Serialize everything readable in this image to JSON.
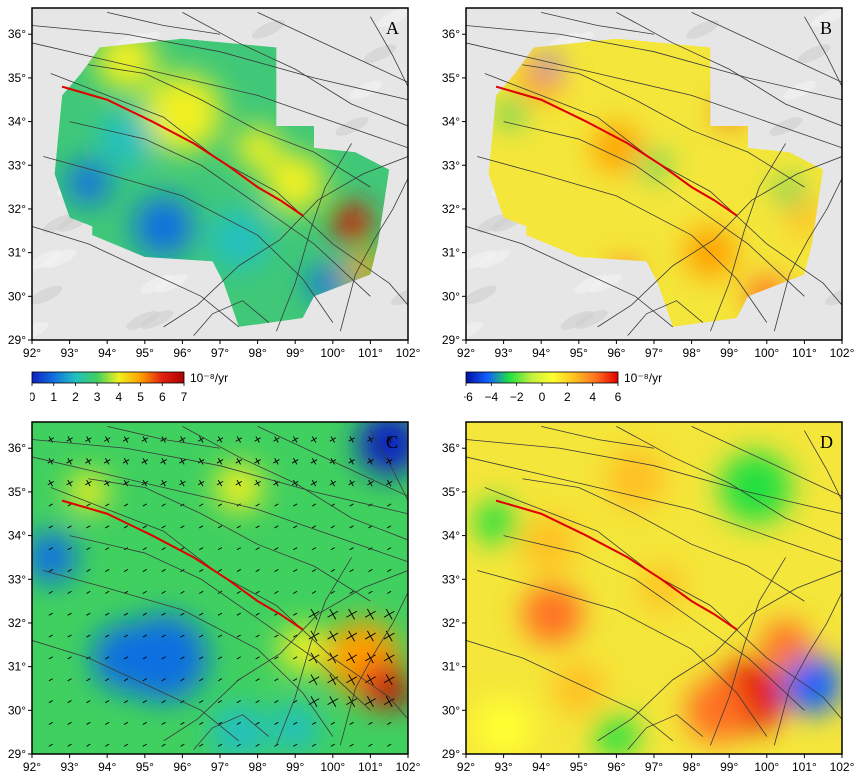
{
  "colors": {
    "fault_line": "#3a3a3a",
    "main_fault": "#e00000",
    "scale_strain": [
      "#1020c0",
      "#1070e0",
      "#20c0c0",
      "#40d060",
      "#f0f020",
      "#ffa000",
      "#e02010",
      "#b00000"
    ],
    "scale_rotation": [
      "#0010a0",
      "#1060ff",
      "#20e040",
      "#c0f040",
      "#ffff30",
      "#ffc020",
      "#ff7020",
      "#e00000"
    ]
  },
  "panels": [
    {
      "id": "A",
      "label": "A",
      "x_ticks": [
        "92°",
        "93°",
        "94°",
        "95°",
        "96°",
        "97°",
        "98°",
        "99°",
        "100°",
        "101°",
        "102°"
      ],
      "y_ticks": [
        "29°",
        "30°",
        "31°",
        "32°",
        "33°",
        "34°",
        "35°",
        "36°"
      ],
      "basemap": "shaded-relief"
    },
    {
      "id": "B",
      "label": "B",
      "x_ticks": [
        "92°",
        "93°",
        "94°",
        "95°",
        "96°",
        "97°",
        "98°",
        "99°",
        "100°",
        "101°",
        "102°"
      ],
      "y_ticks": [
        "29°",
        "30°",
        "31°",
        "32°",
        "33°",
        "34°",
        "35°",
        "36°"
      ],
      "basemap": "shaded-relief"
    },
    {
      "id": "C",
      "label": "C",
      "x_ticks": [
        "92°",
        "93°",
        "94°",
        "95°",
        "96°",
        "97°",
        "98°",
        "99°",
        "100°",
        "101°",
        "102°"
      ],
      "y_ticks": [
        "29°",
        "30°",
        "31°",
        "32°",
        "33°",
        "34°",
        "35°",
        "36°"
      ],
      "basemap": "none"
    },
    {
      "id": "D",
      "label": "D",
      "x_ticks": [
        "92°",
        "93°",
        "94°",
        "95°",
        "96°",
        "97°",
        "98°",
        "99°",
        "100°",
        "101°",
        "102°"
      ],
      "y_ticks": [
        "29°",
        "30°",
        "31°",
        "32°",
        "33°",
        "34°",
        "35°",
        "36°"
      ],
      "basemap": "none"
    }
  ],
  "colorbars": [
    {
      "id": "strain",
      "ticks": [
        "0",
        "1",
        "2",
        "3",
        "4",
        "5",
        "6",
        "7"
      ],
      "unit": "10⁻⁸/yr"
    },
    {
      "id": "rotation",
      "ticks": [
        "−6",
        "−4",
        "−2",
        "0",
        "2",
        "4",
        "6"
      ],
      "unit": "10⁻⁸/yr"
    }
  ]
}
